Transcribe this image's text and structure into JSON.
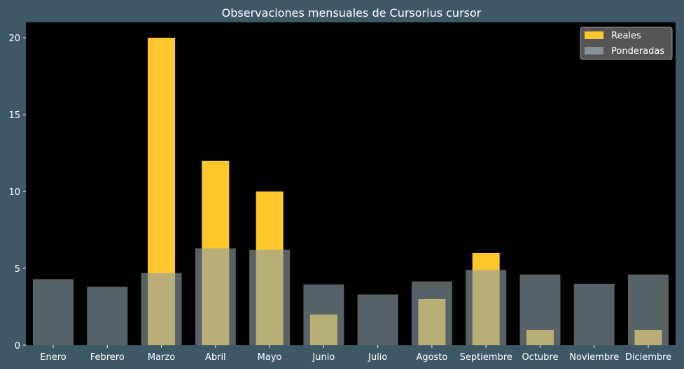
{
  "chart_data": {
    "type": "bar",
    "title": "Observaciones mensuales de Cursorius cursor",
    "xlabel": "",
    "ylabel": "",
    "categories": [
      "Enero",
      "Febrero",
      "Marzo",
      "Abril",
      "Mayo",
      "Junio",
      "Julio",
      "Agosto",
      "Septiembre",
      "Octubre",
      "Noviembre",
      "Diciembre"
    ],
    "series": [
      {
        "name": "Reales",
        "color": "#ffc72c",
        "values": [
          0,
          0,
          20,
          12,
          10,
          2,
          0,
          3,
          6,
          1,
          0,
          1
        ]
      },
      {
        "name": "Ponderadas",
        "color": "#8c9ea4",
        "values": [
          4.3,
          3.8,
          4.7,
          6.3,
          6.2,
          3.95,
          3.3,
          4.15,
          4.9,
          4.6,
          4.0,
          4.6
        ]
      }
    ],
    "ylim": [
      0,
      21
    ],
    "yticks": [
      0,
      5,
      10,
      15,
      20
    ],
    "grid": false,
    "legend": "top-right",
    "colors": {
      "background": "#3f5866",
      "plot_background": "#000000",
      "text": "#ffffff",
      "legend_background": "#555555"
    }
  }
}
